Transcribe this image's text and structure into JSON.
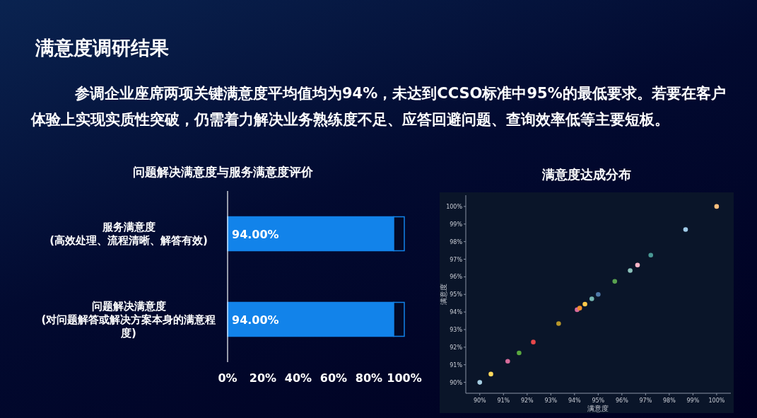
{
  "chart_data": [
    {
      "type": "other",
      "title": "满意度调研结果",
      "annotations": [
        "参调企业座席两项关键满意度平均值均为94%，未达到CCSO标准中95%的最低要求。若要在客户体验上实现实质性突破，仍需着力解决业务熟练度不足、应答回避问题、查询效率低等主要短板。"
      ]
    },
    {
      "type": "bar",
      "orientation": "horizontal",
      "stacked": true,
      "title": "问题解决满意度与服务满意度评价",
      "categories": [
        "服务满意度\n(高效处理、流程清晰、解答有效)",
        "问题解决满意度\n(对问题解答或解决方案本身的满意程度)"
      ],
      "series": [
        {
          "color": "#1283ea",
          "values": [
            94,
            94
          ],
          "value_labels": [
            "94.00%",
            "94.00%"
          ]
        },
        {
          "color": "#020826",
          "values": [
            6,
            6
          ]
        }
      ],
      "xlim": [
        0,
        100
      ],
      "xticks": [
        {
          "value": 0,
          "label": "0%"
        },
        {
          "value": 20,
          "label": "20%"
        },
        {
          "value": 40,
          "label": "40%"
        },
        {
          "value": 60,
          "label": "60%"
        },
        {
          "value": 80,
          "label": "80%"
        },
        {
          "value": 100,
          "label": "100%"
        }
      ]
    },
    {
      "type": "scatter",
      "title": "满意度达成分布",
      "xlabel": "满意度",
      "ylabel": "满意度",
      "marker": "circle",
      "x": [
        90.0,
        90.47,
        91.18,
        91.66,
        92.26,
        93.33,
        94.11,
        94.22,
        94.44,
        94.73,
        95.0,
        95.7,
        96.35,
        96.66,
        97.22,
        98.69,
        100.0
      ],
      "values": [
        90.0,
        90.47,
        91.2,
        91.67,
        92.29,
        93.34,
        94.13,
        94.22,
        94.45,
        94.75,
        95.0,
        95.74,
        96.36,
        96.67,
        97.23,
        98.69,
        100.0
      ],
      "colors": [
        "#a6cee3",
        "#ffd95c",
        "#d76b9a",
        "#5aa83f",
        "#e8474a",
        "#b8972a",
        "#d76b9a",
        "#f28e2b",
        "#ffc94a",
        "#76b7b2",
        "#4e79a7",
        "#59a14f",
        "#8cc2bb",
        "#ffb6c8",
        "#499894",
        "#a0cbe8",
        "#ffbe7d"
      ],
      "xlim": [
        89.41,
        100.6
      ],
      "ylim": [
        89.38,
        100.64
      ],
      "xticks": [
        {
          "value": 90,
          "label": "90%"
        },
        {
          "value": 91,
          "label": "91%"
        },
        {
          "value": 92,
          "label": "92%"
        },
        {
          "value": 93,
          "label": "93%"
        },
        {
          "value": 94,
          "label": "94%"
        },
        {
          "value": 95,
          "label": "95%"
        },
        {
          "value": 96,
          "label": "96%"
        },
        {
          "value": 97,
          "label": "97%"
        },
        {
          "value": 98,
          "label": "98%"
        },
        {
          "value": 99,
          "label": "99%"
        },
        {
          "value": 100,
          "label": "100%"
        }
      ],
      "yticks": [
        {
          "value": 90,
          "label": "90%"
        },
        {
          "value": 91,
          "label": "91%"
        },
        {
          "value": 92,
          "label": "92%"
        },
        {
          "value": 93,
          "label": "93%"
        },
        {
          "value": 94,
          "label": "94%"
        },
        {
          "value": 95,
          "label": "95%"
        },
        {
          "value": 96,
          "label": "96%"
        },
        {
          "value": 97,
          "label": "97%"
        },
        {
          "value": 98,
          "label": "98%"
        },
        {
          "value": 99,
          "label": "99%"
        },
        {
          "value": 100,
          "label": "100%"
        }
      ]
    }
  ]
}
